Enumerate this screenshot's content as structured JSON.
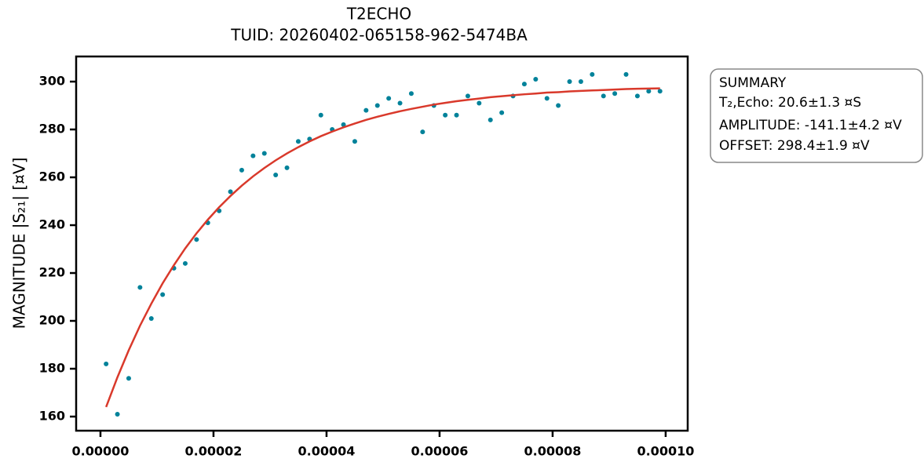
{
  "chart_data": {
    "type": "scatter",
    "title": "T2ECHO",
    "subtitle": "TUID: 20260402-065158-962-5474BA",
    "ylabel": "MAGNITUDE |S₂₁| [¤V]",
    "summary": [
      "SUMMARY",
      "T₂,Echo: 20.6±1.3 ¤S",
      "AMPLITUDE: -141.1±4.2 ¤V",
      "OFFSET: 298.4±1.9 ¤V"
    ],
    "xlim": [
      -4.3e-06,
      0.0001039
    ],
    "ylim": [
      154.1,
      310.5
    ],
    "xticks": [
      {
        "value": 0,
        "label": "0.00000"
      },
      {
        "value": 2e-05,
        "label": "0.00002"
      },
      {
        "value": 4e-05,
        "label": "0.00004"
      },
      {
        "value": 6e-05,
        "label": "0.00006"
      },
      {
        "value": 8e-05,
        "label": "0.00008"
      },
      {
        "value": 0.0001,
        "label": "0.00010"
      }
    ],
    "yticks": [
      160,
      180,
      200,
      220,
      240,
      260,
      280,
      300
    ],
    "x": [
      1e-06,
      3e-06,
      5e-06,
      7e-06,
      9e-06,
      1.1e-05,
      1.3e-05,
      1.5e-05,
      1.7e-05,
      1.9e-05,
      2.1e-05,
      2.3e-05,
      2.5e-05,
      2.7e-05,
      2.9e-05,
      3.1e-05,
      3.3e-05,
      3.5e-05,
      3.7e-05,
      3.9e-05,
      4.1e-05,
      4.3e-05,
      4.5e-05,
      4.7e-05,
      4.9e-05,
      5.1e-05,
      5.3e-05,
      5.5e-05,
      5.7e-05,
      5.9e-05,
      6.1e-05,
      6.3e-05,
      6.5e-05,
      6.7e-05,
      6.9e-05,
      7.1e-05,
      7.3e-05,
      7.5e-05,
      7.7e-05,
      7.9e-05,
      8.1e-05,
      8.3e-05,
      8.5e-05,
      8.7e-05,
      8.9e-05,
      9.1e-05,
      9.3e-05,
      9.5e-05,
      9.7e-05,
      9.9e-05
    ],
    "series": [
      {
        "color": "#00829a",
        "style": "points",
        "values": [
          182,
          161,
          176,
          214,
          201,
          211,
          222,
          224,
          234,
          241,
          246,
          254,
          263,
          269,
          270,
          261,
          264,
          275,
          276,
          286,
          280,
          282,
          275,
          288,
          290,
          293,
          291,
          295,
          279,
          290,
          286,
          286,
          294,
          291,
          284,
          287,
          294,
          299,
          301,
          293,
          290,
          300,
          300,
          303,
          294,
          295,
          303,
          294,
          296,
          296
        ]
      },
      {
        "color": "#d9392b",
        "style": "line",
        "values": [
          164.0,
          176.4,
          187.7,
          198.0,
          207.2,
          215.7,
          223.3,
          230.3,
          236.6,
          242.3,
          247.5,
          252.2,
          256.5,
          260.4,
          263.9,
          267.1,
          270.0,
          272.6,
          275.0,
          277.2,
          279.1,
          280.9,
          282.5,
          284.0,
          285.3,
          286.5,
          287.6,
          288.6,
          289.5,
          290.4,
          291.1,
          291.8,
          292.4,
          292.9,
          293.5,
          293.9,
          294.3,
          294.7,
          295.0,
          295.4,
          295.6,
          295.9,
          296.1,
          296.3,
          296.5,
          296.7,
          296.9,
          297.0,
          297.1,
          297.2
        ]
      }
    ]
  }
}
